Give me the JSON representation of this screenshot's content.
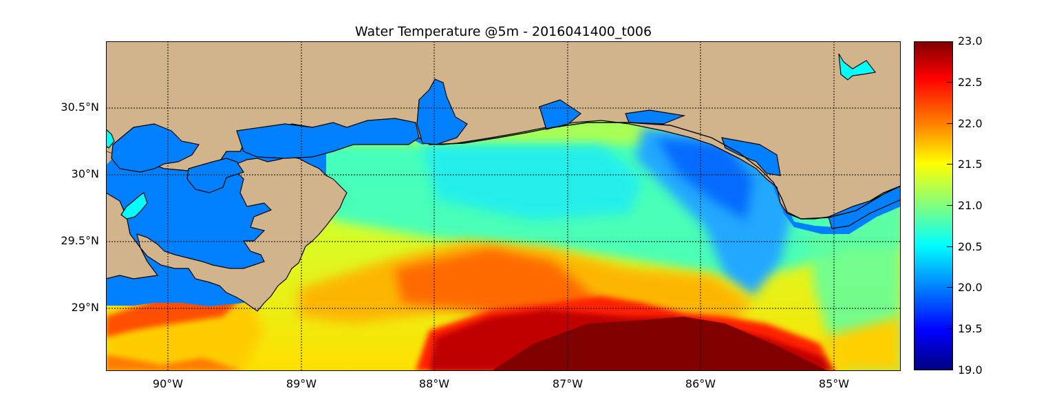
{
  "map": {
    "title": "Water Temperature @5m - 2016041400_t006",
    "lat_labels": [
      "30.5°N",
      "30°N",
      "29.5°N",
      "29°N"
    ],
    "lon_labels": [
      "90°W",
      "89°W",
      "88°W",
      "87°W",
      "86°W",
      "85°W"
    ],
    "lon_range": [
      -90.47,
      -84.5
    ],
    "lat_range": [
      28.53,
      31.0
    ],
    "gridlines": true,
    "colors": {
      "land": "#d2b48c",
      "inland_water": "#0080ff",
      "lake": "#00ffff",
      "coastline": "#000000"
    }
  },
  "colorbar": {
    "colormap": "jet",
    "vmin": 19.0,
    "vmax": 23.0,
    "tick_labels": [
      "23.0",
      "22.5",
      "22.0",
      "21.5",
      "21.0",
      "20.5",
      "20.0",
      "19.5",
      "19.0"
    ]
  }
}
